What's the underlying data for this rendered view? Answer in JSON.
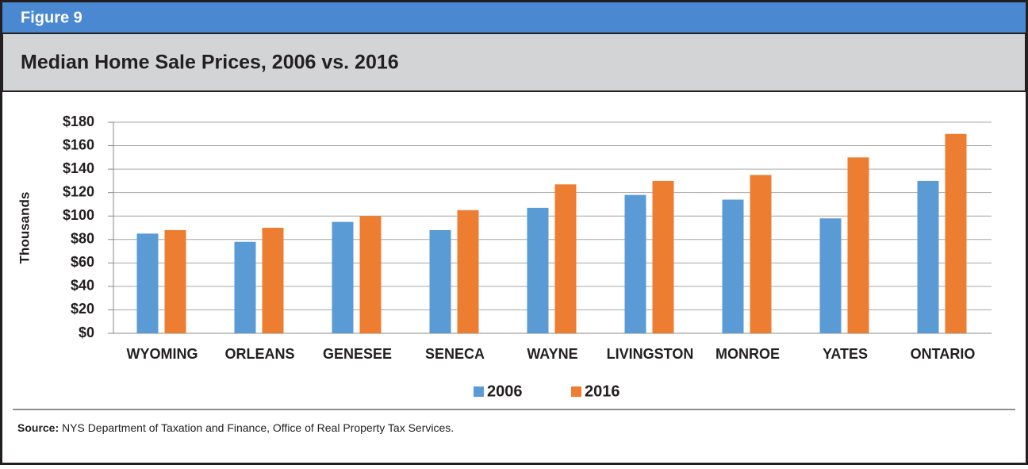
{
  "figure_label": "Figure 9",
  "source": {
    "label": "Source:",
    "text": "NYS Department of Taxation and Finance, Office of Real Property Tax Services."
  },
  "chart_data": {
    "type": "bar",
    "title": "Median Home Sale Prices, 2006 vs. 2016",
    "y_axis_label": "Thousands",
    "categories": [
      "WYOMING",
      "ORLEANS",
      "GENESEE",
      "SENECA",
      "WAYNE",
      "LIVINGSTON",
      "MONROE",
      "YATES",
      "ONTARIO"
    ],
    "series": [
      {
        "name": "2006",
        "color": "#5b9bd5",
        "values": [
          85,
          78,
          95,
          88,
          107,
          118,
          114,
          98,
          130
        ]
      },
      {
        "name": "2016",
        "color": "#ed7d31",
        "values": [
          88,
          90,
          100,
          105,
          127,
          130,
          135,
          150,
          170
        ]
      }
    ],
    "ylim": [
      0,
      180
    ],
    "yticks": [
      {
        "value": 0,
        "label": "$0"
      },
      {
        "value": 20,
        "label": "$20"
      },
      {
        "value": 40,
        "label": "$40"
      },
      {
        "value": 60,
        "label": "$60"
      },
      {
        "value": 80,
        "label": "$80"
      },
      {
        "value": 100,
        "label": "$100"
      },
      {
        "value": 120,
        "label": "$120"
      },
      {
        "value": 140,
        "label": "$140"
      },
      {
        "value": 160,
        "label": "$160"
      },
      {
        "value": 180,
        "label": "$180"
      }
    ],
    "grid": true,
    "legend": "bottom"
  }
}
